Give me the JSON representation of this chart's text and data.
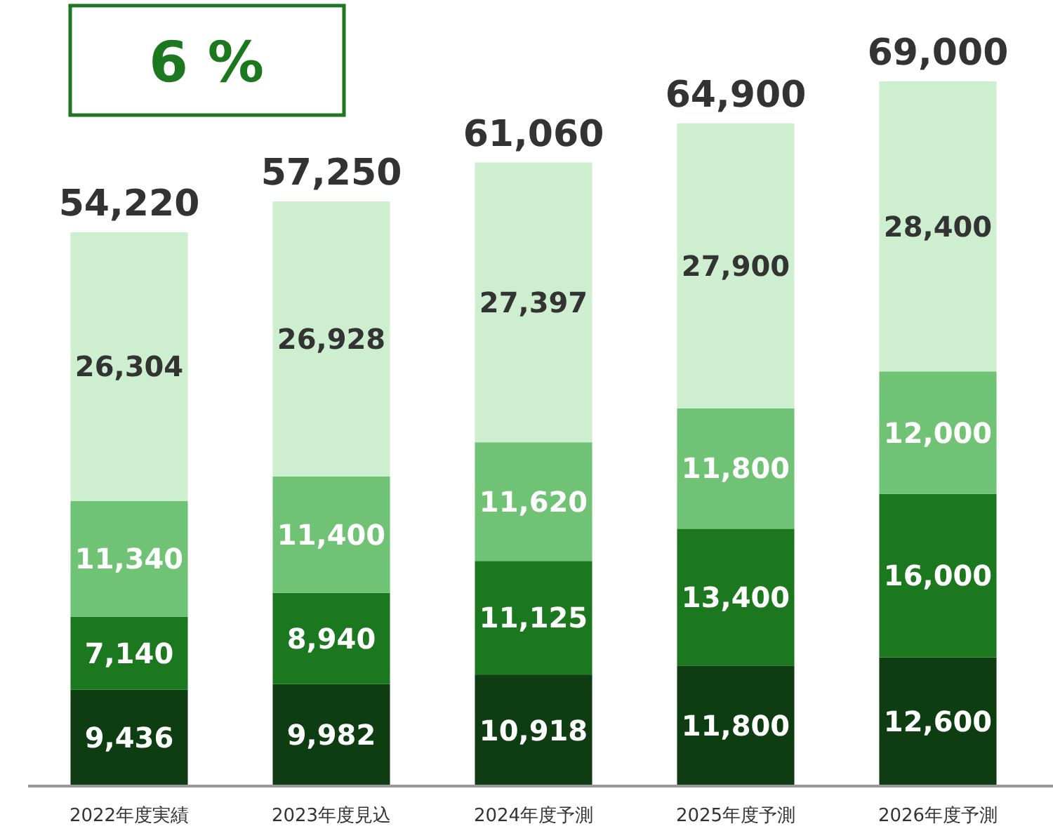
{
  "chart_data": {
    "type": "bar",
    "stacked": true,
    "categories": [
      "2022年度実績",
      "2023年度見込",
      "2024年度予測",
      "2025年度予測",
      "2026年度予測"
    ],
    "series": [
      {
        "color": "#0f3d12",
        "values": [
          9436,
          9982,
          10918,
          11800,
          12600
        ],
        "value_labels": [
          "9,436",
          "9,982",
          "10,918",
          "11,800",
          "12,600"
        ]
      },
      {
        "color": "#1b781e",
        "values": [
          7140,
          8940,
          11125,
          13400,
          16000
        ],
        "value_labels": [
          "7,140",
          "8,940",
          "11,125",
          "13,400",
          "16,000"
        ]
      },
      {
        "color": "#70c274",
        "values": [
          11340,
          11400,
          11620,
          11800,
          12000
        ],
        "value_labels": [
          "11,340",
          "11,400",
          "11,620",
          "11,800",
          "12,000"
        ]
      },
      {
        "color": "#cdeecf",
        "values": [
          26304,
          26928,
          27397,
          27900,
          28400
        ],
        "value_labels": [
          "26,304",
          "26,928",
          "27,397",
          "27,900",
          "28,400"
        ]
      }
    ],
    "totals": [
      "54,220",
      "57,250",
      "61,060",
      "64,900",
      "69,000"
    ],
    "annotations": [
      "6 %"
    ]
  }
}
